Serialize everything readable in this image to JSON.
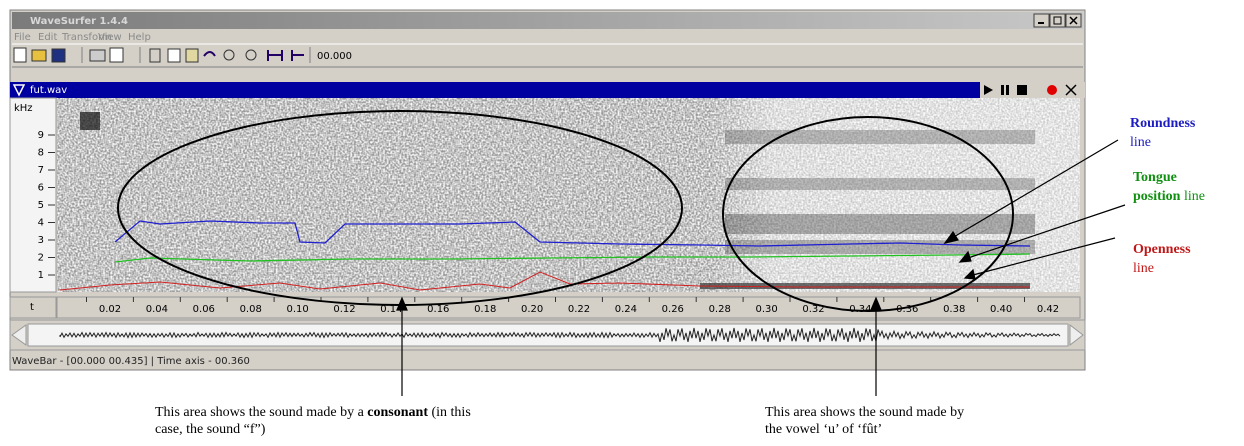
{
  "window": {
    "title": "WaveSurfer 1.4.4",
    "menu": [
      "File",
      "Edit",
      "Transform",
      "View",
      "Help"
    ],
    "toolbar_time": "00.000",
    "status": "WaveBar - [00.000 00.435] | Time axis - 00.360"
  },
  "pane": {
    "file": "fut.wav",
    "y_unit": "kHz",
    "y_ticks": [
      "9",
      "8",
      "7",
      "6",
      "5",
      "4",
      "3",
      "2",
      "1"
    ],
    "x_unit": "t",
    "x_ticks": [
      "0.02",
      "0.04",
      "0.06",
      "0.08",
      "0.10",
      "0.12",
      "0.14",
      "0.16",
      "0.18",
      "0.20",
      "0.22",
      "0.24",
      "0.26",
      "0.28",
      "0.30",
      "0.32",
      "0.34",
      "0.36",
      "0.38",
      "0.40",
      "0.42"
    ]
  },
  "annotations": {
    "roundness": {
      "bold": "Roundness",
      "rest": "line"
    },
    "tongue": {
      "bold": "Tongue",
      "bold2": "position",
      "rest": " line"
    },
    "openness": {
      "bold": "Openness",
      "rest": "line"
    }
  },
  "captions": {
    "consonant": {
      "line1_a": "This area shows the sound made by a ",
      "line1_b": "consonant",
      "line1_c": " (in this",
      "line2": "case, the sound “f”)"
    },
    "vowel": {
      "line1": "This area shows the sound made by",
      "line2": "the vowel ‘u’ of ‘fût’"
    }
  }
}
